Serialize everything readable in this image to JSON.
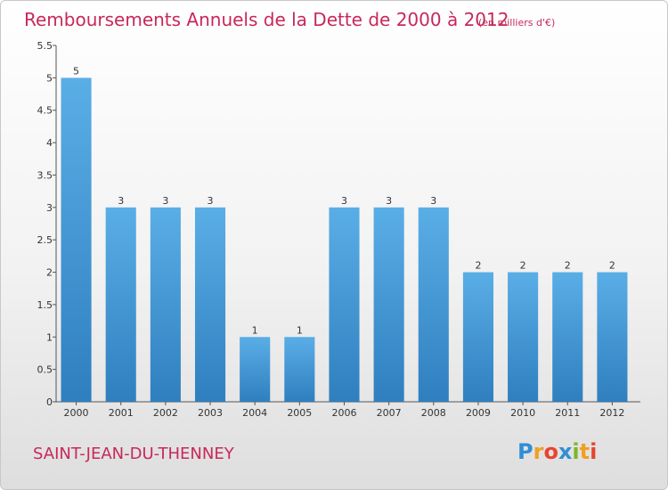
{
  "chart_data": {
    "type": "bar",
    "title": "Remboursements Annuels de la Dette de 2000 à 2012",
    "subtitle": "(en milliers d'€)",
    "categories": [
      "2000",
      "2001",
      "2002",
      "2003",
      "2004",
      "2005",
      "2006",
      "2007",
      "2008",
      "2009",
      "2010",
      "2011",
      "2012"
    ],
    "values": [
      5,
      3,
      3,
      3,
      1,
      1,
      3,
      3,
      3,
      2,
      2,
      2,
      2
    ],
    "ylim": [
      0,
      5.5
    ],
    "yticks": [
      "0",
      "0.5",
      "1",
      "1.5",
      "2",
      "2.5",
      "3",
      "3.5",
      "4",
      "4.5",
      "5",
      "5.5"
    ],
    "grid": false,
    "bar_color": "#5aaee6",
    "bar_color_dark": "#2f7fbf"
  },
  "footer": {
    "commune": "SAINT-JEAN-DU-THENNEY",
    "logo_letters": [
      "P",
      "r",
      "o",
      "x",
      "i",
      "t",
      "i"
    ],
    "logo_colors": [
      "#2e8fd4",
      "#f0a020",
      "#e8452e",
      "#2e8fd4",
      "#7ab828",
      "#f0a020",
      "#e8452e"
    ]
  },
  "colors": {
    "title": "#c8285a",
    "axis": "#555555"
  }
}
